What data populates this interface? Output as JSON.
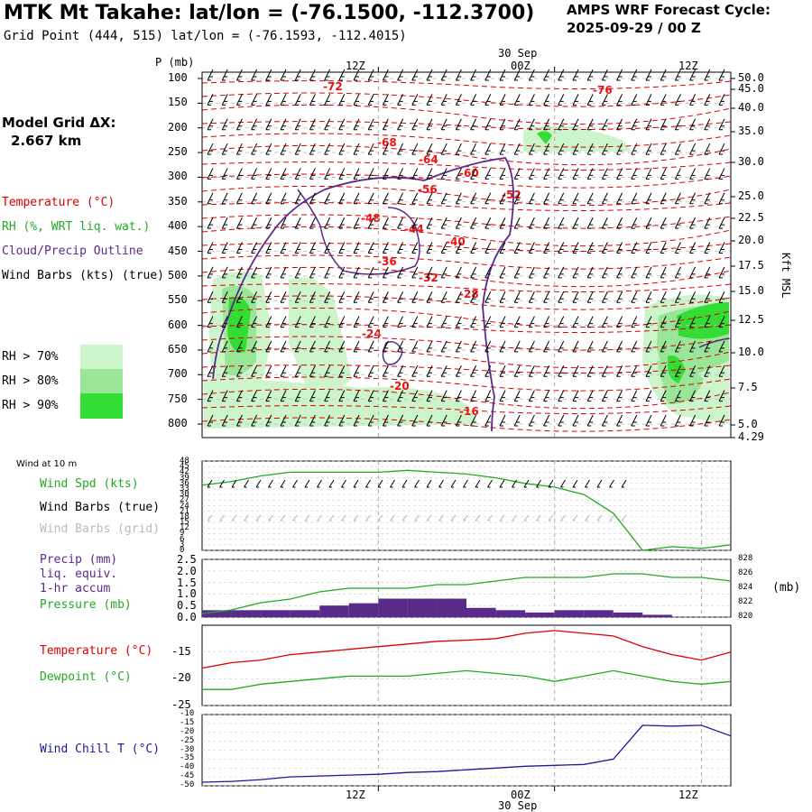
{
  "header": {
    "title": "MTK Mt Takahe:  lat/lon = (-76.1500, -112.3700)",
    "grid_point": "Grid Point (444, 515) lat/lon = (-76.1593, -112.4015)",
    "cycle_line1": "AMPS WRF Forecast Cycle:",
    "cycle_line2": "2025-09-29 / 00  Z"
  },
  "left_legend": {
    "model_grid": "Model Grid ΔX:",
    "model_grid_value": "2.667 km",
    "temperature": "Temperature (°C)",
    "rh": "RH (%, WRT liq. wat.)",
    "cloud": "Cloud/Precip Outline",
    "wind": "Wind Barbs (kts) (true)",
    "rh70": "RH > 70%",
    "rh80": "RH > 80%",
    "rh90": "RH > 90%",
    "colors": {
      "rh70": "#ccf5cc",
      "rh80": "#99e699",
      "rh90": "#33dd33",
      "temp": "#dd0000",
      "cloud": "#5a2a8a"
    }
  },
  "upper": {
    "p_label": "P (mb)",
    "p_ticks": [
      "100",
      "150",
      "200",
      "250",
      "300",
      "350",
      "400",
      "450",
      "500",
      "550",
      "600",
      "650",
      "700",
      "750",
      "800"
    ],
    "kft_ticks": [
      "50.0",
      "45.0",
      "40.0",
      "35.0",
      "30.0",
      "25.0",
      "22.5",
      "20.0",
      "17.5",
      "15.0",
      "12.5",
      "10.0",
      "7.5",
      "5.0",
      "4.29"
    ],
    "kft_label": "Kft MSL",
    "time_ticks": [
      "12Z",
      "00Z",
      "12Z"
    ],
    "date_label": "30 Sep",
    "temp_labels": [
      "-72",
      "-76",
      "-68",
      "-64",
      "-60",
      "-56",
      "-52",
      "-48",
      "-44",
      "-40",
      "-36",
      "-32",
      "-28",
      "-24",
      "-20",
      "-16"
    ]
  },
  "wind10": {
    "title": "Wind at 10 m",
    "spd_label": "Wind Spd (kts)",
    "barbs_true": "Wind Barbs (true)",
    "barbs_grid": "Wind Barbs (grid)",
    "y_ticks": [
      "48",
      "45",
      "42",
      "39",
      "36",
      "33",
      "30",
      "27",
      "24",
      "21",
      "18",
      "15",
      "12",
      "9",
      "6",
      "3",
      "0"
    ]
  },
  "precip": {
    "label1": "Precip (mm)",
    "label2": "liq. equiv.",
    "label3": "1-hr accum",
    "label4": "Pressure (mb)",
    "y_left": [
      "2.5",
      "2.0",
      "1.5",
      "1.0",
      "0.5",
      "0.0"
    ],
    "y_right": [
      "828",
      "826",
      "824",
      "822",
      "820"
    ],
    "unit": "(mb)"
  },
  "temps": {
    "temp_label": "Temperature (°C)",
    "dew_label": "Dewpoint (°C)",
    "y_ticks": [
      "-15",
      "-20",
      "-25"
    ]
  },
  "chill": {
    "label": "Wind Chill T (°C)",
    "y_ticks": [
      "-10",
      "-15",
      "-20",
      "-25",
      "-30",
      "-35",
      "-40",
      "-45",
      "-50"
    ]
  },
  "bottom": {
    "time_ticks": [
      "12Z",
      "00Z",
      "12Z"
    ],
    "date_label": "30 Sep"
  },
  "chart_data": [
    {
      "type": "line",
      "panel": "time-height cross section",
      "x_hours": [
        0,
        12,
        24,
        36
      ],
      "ylim": [
        800,
        100
      ],
      "rh_regions": [
        "RH > 70%",
        "RH > 80%",
        "RH > 90%"
      ]
    },
    {
      "type": "line",
      "panel": "10 m wind",
      "x_hours": [
        0,
        2,
        4,
        6,
        8,
        10,
        12,
        14,
        16,
        18,
        20,
        22,
        24,
        26,
        28,
        30,
        32,
        34,
        36
      ],
      "series": [
        {
          "name": "Wind Spd (kts)",
          "values": [
            35,
            37,
            40,
            42,
            42,
            42,
            42,
            43,
            42,
            41,
            39,
            36,
            34,
            30,
            20,
            0,
            2,
            1,
            3
          ]
        }
      ],
      "ylim": [
        0,
        48
      ]
    },
    {
      "type": "bar",
      "panel": "precip and pressure",
      "x_hours": [
        0,
        2,
        4,
        6,
        8,
        10,
        12,
        14,
        16,
        18,
        20,
        22,
        24,
        26,
        28,
        30,
        32,
        34,
        36
      ],
      "series": [
        {
          "name": "Precip (mm)",
          "values": [
            0.3,
            0.3,
            0.3,
            0.3,
            0.5,
            0.6,
            0.8,
            0.8,
            0.8,
            0.4,
            0.3,
            0.2,
            0.3,
            0.3,
            0.2,
            0.1,
            0.0,
            0.0,
            0.0
          ]
        },
        {
          "name": "Pressure (mb)",
          "values": [
            820.5,
            821,
            822,
            822.5,
            823.5,
            824,
            824,
            824,
            824.5,
            824.5,
            825,
            825.5,
            825.5,
            825.5,
            826,
            826,
            825.5,
            825.5,
            825
          ]
        }
      ],
      "ylim": [
        0,
        2.5
      ]
    },
    {
      "type": "line",
      "panel": "temperature and dewpoint",
      "x_hours": [
        0,
        2,
        4,
        6,
        8,
        10,
        12,
        14,
        16,
        18,
        20,
        22,
        24,
        26,
        28,
        30,
        32,
        34,
        36
      ],
      "series": [
        {
          "name": "Temperature (°C)",
          "values": [
            -18,
            -17,
            -16.5,
            -15.5,
            -15,
            -14.5,
            -14,
            -13.5,
            -13,
            -12.8,
            -12.5,
            -11.5,
            -11,
            -11.5,
            -12,
            -14,
            -15.5,
            -16.5,
            -15
          ]
        },
        {
          "name": "Dewpoint (°C)",
          "values": [
            -22,
            -22,
            -21,
            -20.5,
            -20,
            -19.5,
            -19.5,
            -19.5,
            -19,
            -18.5,
            -19,
            -19.5,
            -20.5,
            -19.5,
            -18.5,
            -19.5,
            -20.5,
            -21,
            -20.5
          ]
        }
      ],
      "ylim": [
        -25,
        -10
      ]
    },
    {
      "type": "line",
      "panel": "wind chill",
      "x_hours": [
        0,
        2,
        4,
        6,
        8,
        10,
        12,
        14,
        16,
        18,
        20,
        22,
        24,
        26,
        28,
        30,
        32,
        34,
        36
      ],
      "series": [
        {
          "name": "Wind Chill T (°C)",
          "values": [
            -48,
            -47.5,
            -46.5,
            -45,
            -44.5,
            -44,
            -43.5,
            -42.5,
            -42,
            -41,
            -40,
            -39,
            -38.5,
            -38,
            -35,
            -16,
            -16.5,
            -16,
            -22
          ]
        }
      ],
      "ylim": [
        -50,
        -10
      ]
    }
  ]
}
